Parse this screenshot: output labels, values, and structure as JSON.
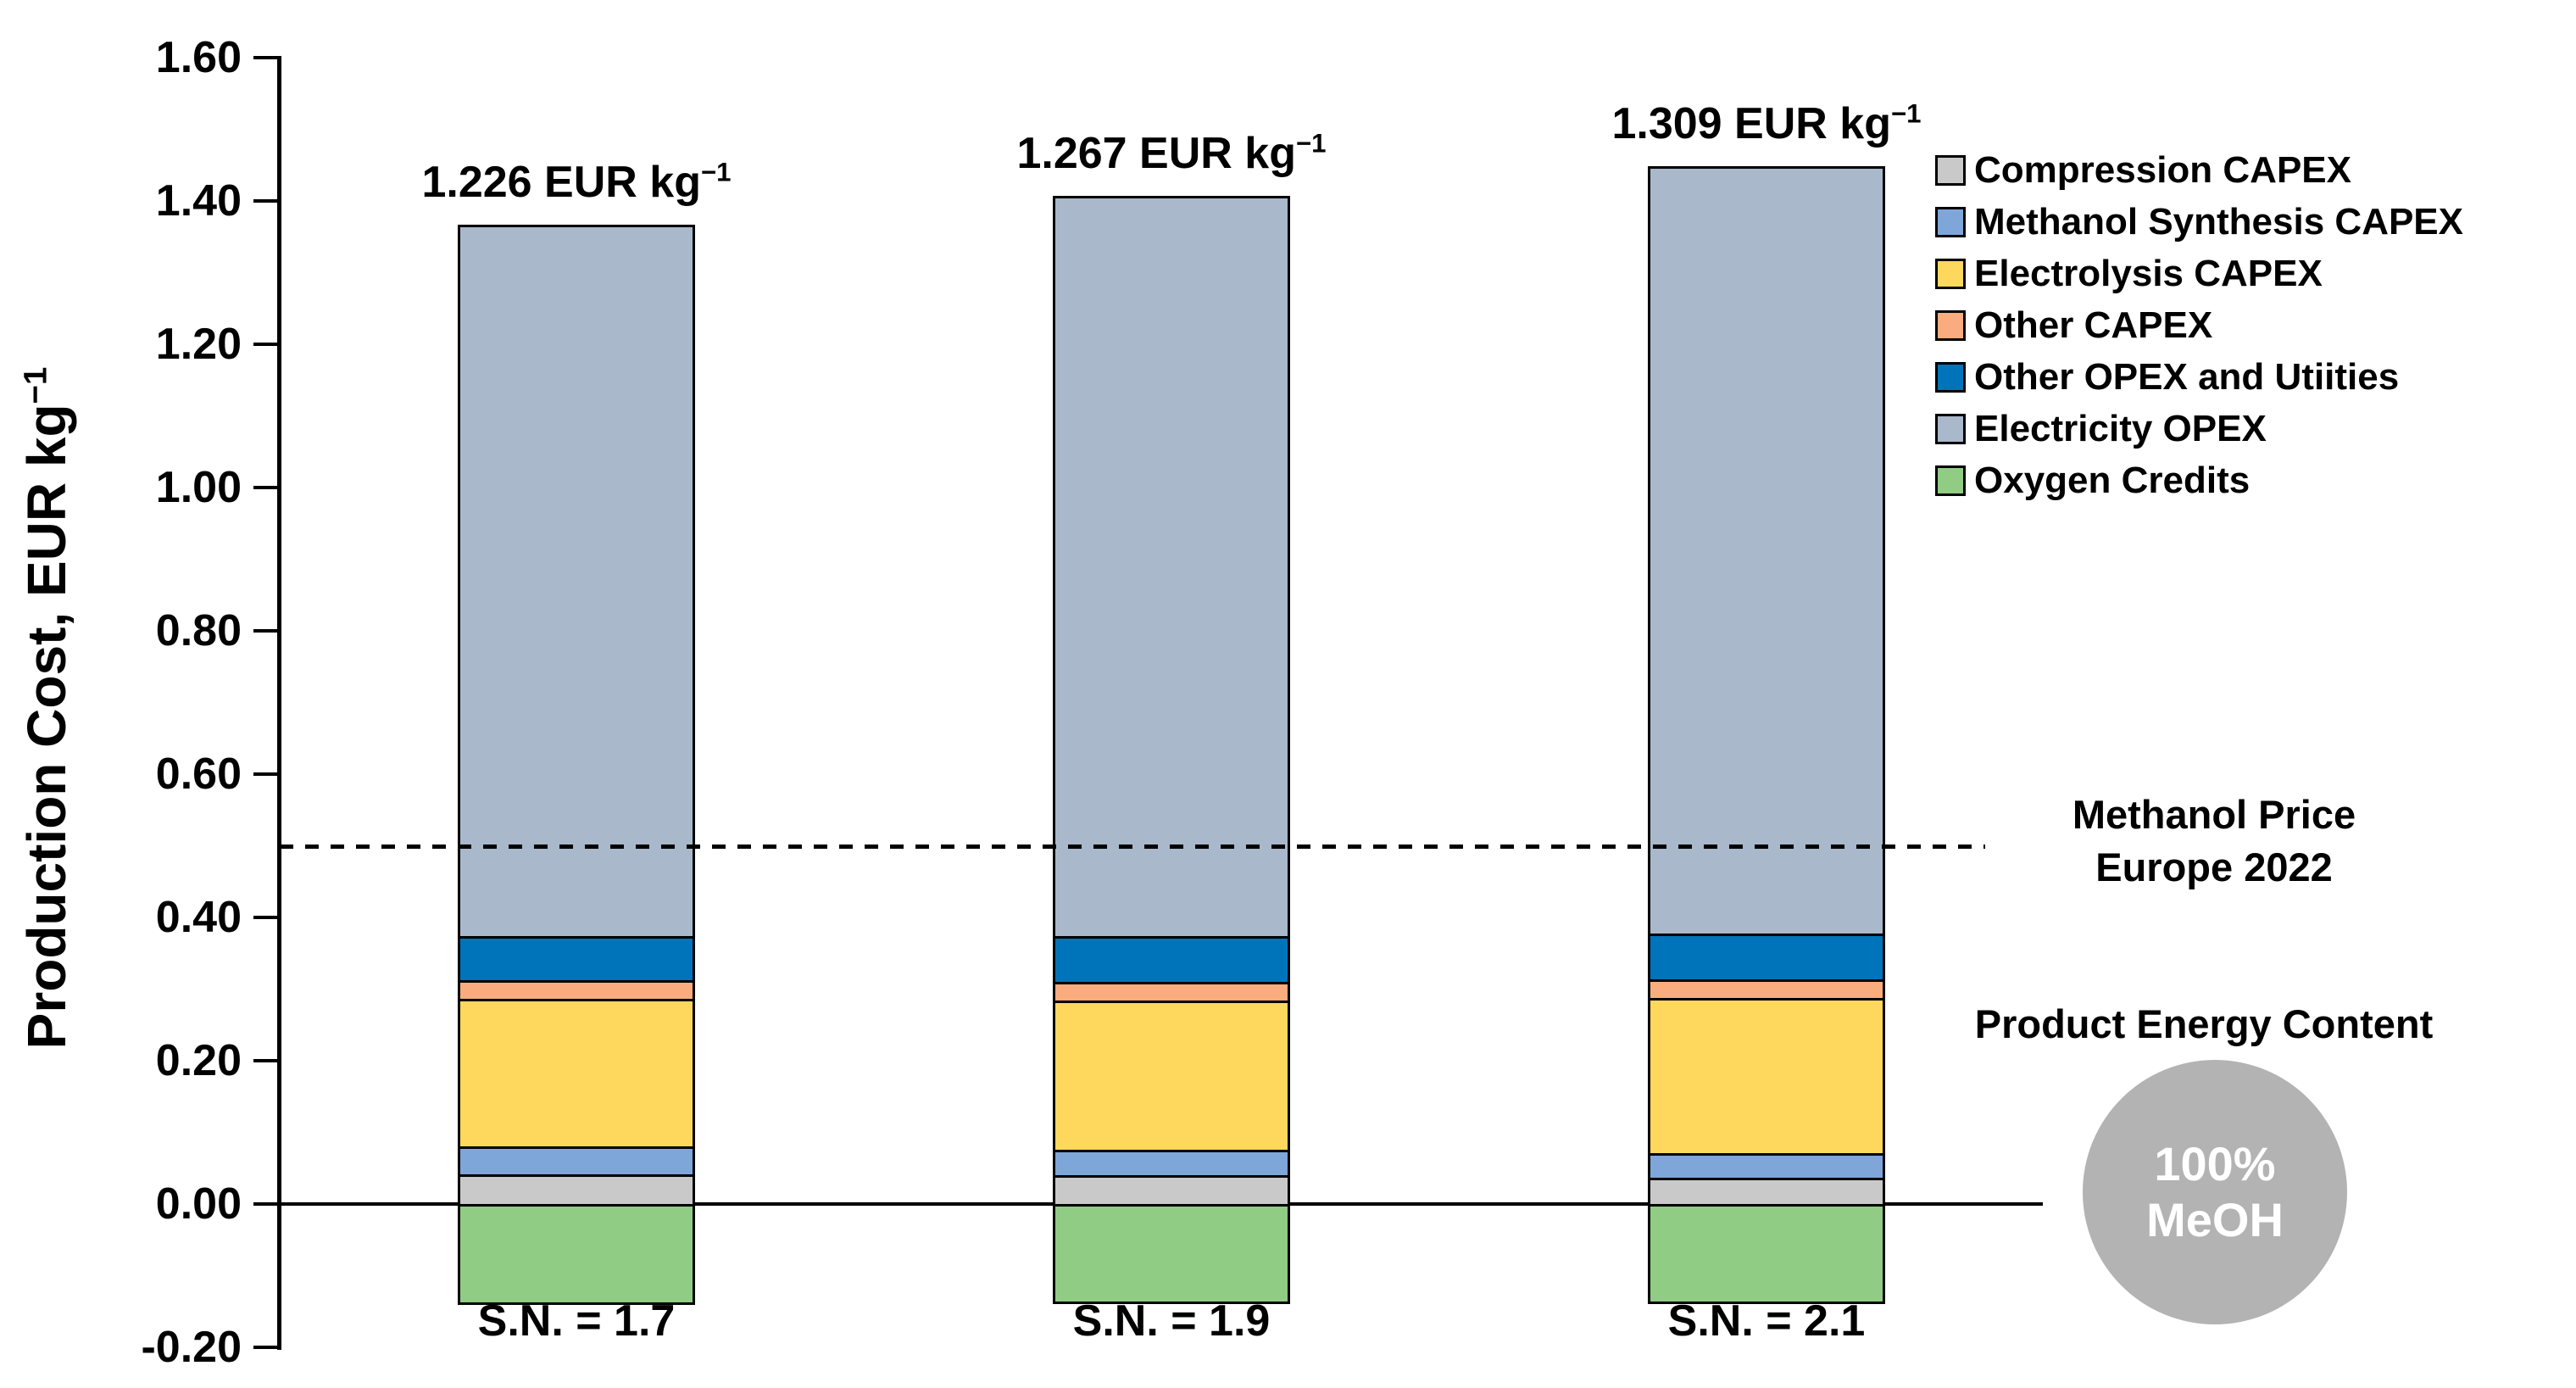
{
  "chart_data": {
    "type": "bar",
    "stacked": true,
    "ylabel_text": "Production Cost, EUR kg",
    "ylabel_sup": "−1",
    "ylim": [
      -0.2,
      1.6
    ],
    "grid": false,
    "legend_position": "top-right",
    "yticks": [
      {
        "label": "1.60",
        "value": 1.6
      },
      {
        "label": "1.40",
        "value": 1.4
      },
      {
        "label": "1.20",
        "value": 1.2
      },
      {
        "label": "1.00",
        "value": 1.0
      },
      {
        "label": "0.80",
        "value": 0.8
      },
      {
        "label": "0.60",
        "value": 0.6
      },
      {
        "label": "0.40",
        "value": 0.4
      },
      {
        "label": "0.20",
        "value": 0.2
      },
      {
        "label": "0.00",
        "value": 0.0
      },
      {
        "label": "-0.20",
        "value": -0.2
      }
    ],
    "categories": [
      "S.N. = 1.7",
      "S.N. = 1.9",
      "S.N. = 2.1"
    ],
    "totals": [
      {
        "value": 1.226,
        "text": "1.226 EUR kg",
        "sup": "−1"
      },
      {
        "value": 1.267,
        "text": "1.267 EUR kg",
        "sup": "−1"
      },
      {
        "value": 1.309,
        "text": "1.309 EUR kg",
        "sup": "−1"
      }
    ],
    "series": [
      {
        "name": "Compression CAPEX",
        "color": "#c9c9c9",
        "values": [
          0.042,
          0.04,
          0.037
        ]
      },
      {
        "name": "Methanol Synthesis CAPEX",
        "color": "#7ea6d9",
        "values": [
          0.038,
          0.036,
          0.034
        ]
      },
      {
        "name": "Electrolysis CAPEX",
        "color": "#fdd85c",
        "values": [
          0.206,
          0.208,
          0.216
        ]
      },
      {
        "name": "Other CAPEX",
        "color": "#fbac7e",
        "values": [
          0.026,
          0.026,
          0.027
        ]
      },
      {
        "name": "Other OPEX and Utiities",
        "color": "#0074ba",
        "values": [
          0.062,
          0.064,
          0.063
        ]
      },
      {
        "name": "Electricity OPEX",
        "color": "#a9b8ca",
        "values": [
          0.993,
          1.033,
          1.072
        ]
      },
      {
        "name": "Oxygen Credits",
        "color": "#90cc83",
        "values": [
          -0.141,
          -0.14,
          -0.14
        ]
      }
    ],
    "reference_line": {
      "value": 0.5,
      "style": "dashed",
      "color": "#000000"
    }
  },
  "annotations": {
    "methanol_price_line1": "Methanol Price",
    "methanol_price_line2": "Europe 2022",
    "product_energy_title": "Product Energy Content",
    "circle_line1": "100%",
    "circle_line2": "MeOH",
    "circle_color": "#b3b3b3"
  }
}
